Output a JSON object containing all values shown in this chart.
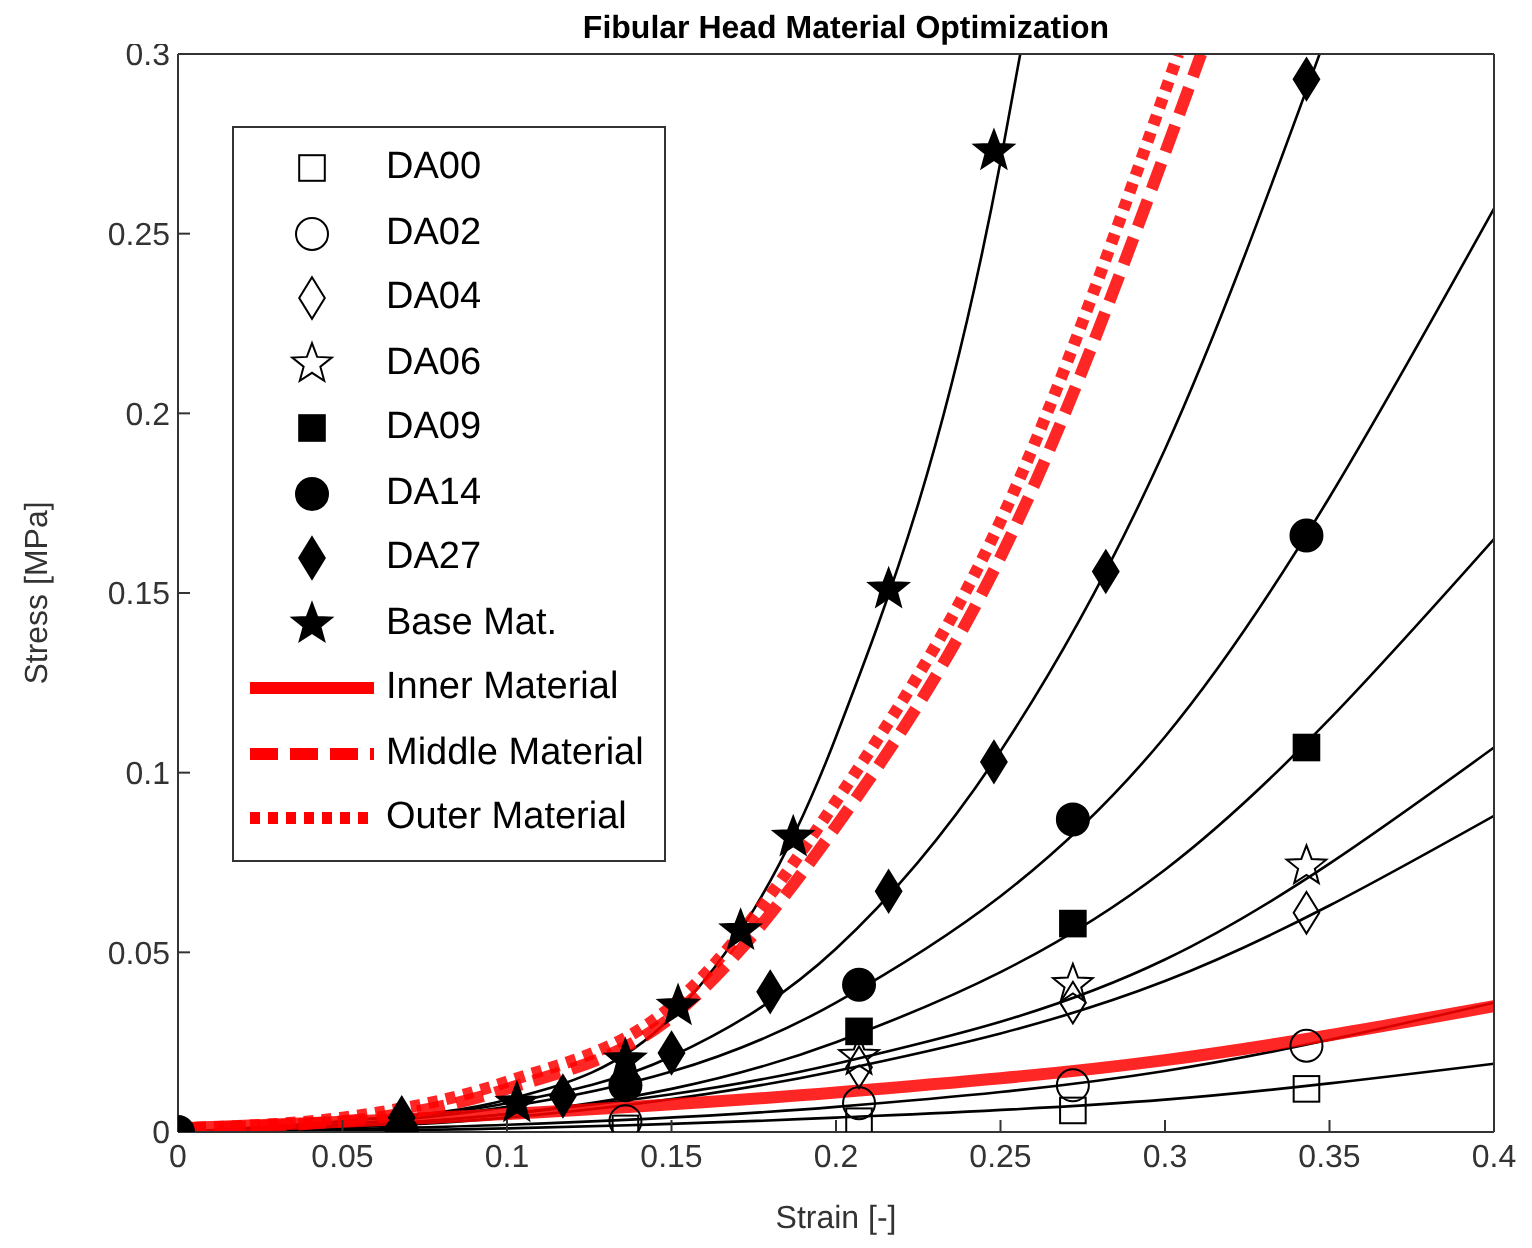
{
  "chart_data": {
    "type": "scatter",
    "title": "Fibular Head Material Optimization",
    "xlabel": "Strain [-]",
    "ylabel": "Stress [MPa]",
    "xlim": [
      0,
      0.4
    ],
    "ylim": [
      0,
      0.3
    ],
    "xticks": [
      0,
      0.05,
      0.1,
      0.15,
      0.2,
      0.25,
      0.3,
      0.35,
      0.4
    ],
    "yticks": [
      0,
      0.05,
      0.1,
      0.15,
      0.2,
      0.25,
      0.3
    ],
    "legend": "top left",
    "series": [
      {
        "type": "line",
        "color": "#000000",
        "line_style": "solid",
        "marker": "none",
        "x": [
          0,
          0.1,
          0.2,
          0.3,
          0.4
        ],
        "values": [
          0,
          0.001,
          0.004,
          0.009,
          0.019
        ]
      },
      {
        "type": "line",
        "color": "#000000",
        "line_style": "solid",
        "marker": "none",
        "x": [
          0,
          0.1,
          0.2,
          0.3,
          0.4
        ],
        "values": [
          0,
          0.002,
          0.007,
          0.017,
          0.036
        ]
      },
      {
        "type": "line",
        "color": "#000000",
        "line_style": "solid",
        "marker": "none",
        "x": [
          0,
          0.1,
          0.2,
          0.3,
          0.4
        ],
        "values": [
          0,
          0.004,
          0.017,
          0.042,
          0.088
        ]
      },
      {
        "type": "line",
        "color": "#000000",
        "line_style": "solid",
        "marker": "none",
        "x": [
          0,
          0.1,
          0.2,
          0.3,
          0.4
        ],
        "values": [
          0,
          0.005,
          0.019,
          0.048,
          0.107
        ]
      },
      {
        "type": "line",
        "color": "#000000",
        "line_style": "solid",
        "marker": "none",
        "x": [
          0,
          0.1,
          0.2,
          0.3,
          0.4
        ],
        "values": [
          0,
          0.005,
          0.025,
          0.073,
          0.165
        ]
      },
      {
        "type": "line",
        "color": "#000000",
        "line_style": "solid",
        "marker": "none",
        "x": [
          0,
          0.1,
          0.2,
          0.3,
          0.4
        ],
        "values": [
          0,
          0.007,
          0.036,
          0.11,
          0.257
        ]
      },
      {
        "type": "line",
        "color": "#000000",
        "line_style": "solid",
        "marker": "none",
        "x": [
          0,
          0.05,
          0.1,
          0.15,
          0.2,
          0.25,
          0.3,
          0.347
        ],
        "values": [
          0,
          0.003,
          0.008,
          0.021,
          0.051,
          0.106,
          0.19,
          0.3
        ]
      },
      {
        "type": "line",
        "color": "#000000",
        "line_style": "solid",
        "marker": "none",
        "x": [
          0,
          0.05,
          0.1,
          0.15,
          0.2,
          0.25,
          0.256
        ],
        "values": [
          0,
          0.003,
          0.009,
          0.032,
          0.11,
          0.27,
          0.3
        ]
      },
      {
        "name": "DA00",
        "type": "scatter",
        "color": "#000000",
        "marker": "square",
        "x": [
          0.136,
          0.207,
          0.272,
          0.343
        ],
        "values": [
          0.001,
          0.003,
          0.006,
          0.012
        ]
      },
      {
        "name": "DA02",
        "type": "scatter",
        "color": "#000000",
        "marker": "circle",
        "x": [
          0.136,
          0.207,
          0.272,
          0.343
        ],
        "values": [
          0.003,
          0.008,
          0.013,
          0.024
        ]
      },
      {
        "name": "DA04",
        "type": "scatter",
        "color": "#000000",
        "marker": "diamond",
        "x": [
          0.207,
          0.272,
          0.343
        ],
        "values": [
          0.018,
          0.036,
          0.061
        ]
      },
      {
        "name": "DA06",
        "type": "scatter",
        "color": "#000000",
        "marker": "star",
        "x": [
          0.207,
          0.272,
          0.343
        ],
        "values": [
          0.021,
          0.041,
          0.074
        ]
      },
      {
        "name": "DA09",
        "type": "scatter",
        "color": "#000000",
        "marker": "square",
        "x": [
          0.207,
          0.272,
          0.343
        ],
        "values": [
          0.028,
          0.058,
          0.107
        ]
      },
      {
        "name": "DA14",
        "type": "scatter",
        "color": "#000000",
        "marker": "circle",
        "x": [
          0,
          0.068,
          0.136,
          0.207,
          0.272,
          0.343
        ],
        "values": [
          0,
          0,
          0.013,
          0.041,
          0.087,
          0.166
        ]
      },
      {
        "name": "DA27",
        "type": "scatter",
        "color": "#000000",
        "marker": "diamond",
        "x": [
          0.068,
          0.117,
          0.15,
          0.18,
          0.216,
          0.248,
          0.282,
          0.343
        ],
        "values": [
          0.004,
          0.01,
          0.022,
          0.039,
          0.067,
          0.103,
          0.156,
          0.293
        ]
      },
      {
        "name": "Base Mat.",
        "type": "scatter",
        "color": "#000000",
        "marker": "star",
        "x": [
          0.103,
          0.136,
          0.152,
          0.171,
          0.187,
          0.216,
          0.248
        ],
        "values": [
          0.008,
          0.02,
          0.035,
          0.056,
          0.082,
          0.151,
          0.273
        ]
      },
      {
        "name": "Inner Material",
        "type": "line",
        "color": "#ff0000",
        "line_style": "solid",
        "marker": "none",
        "x": [
          0,
          0.1,
          0.2,
          0.3,
          0.4
        ],
        "values": [
          0.001,
          0.005,
          0.011,
          0.02,
          0.035
        ]
      },
      {
        "name": "Middle Material",
        "type": "line",
        "color": "#ff0000",
        "line_style": "dashed",
        "marker": "none",
        "x": [
          0,
          0.05,
          0.1,
          0.15,
          0.2,
          0.25,
          0.311
        ],
        "values": [
          0.001,
          0.003,
          0.012,
          0.032,
          0.085,
          0.16,
          0.3
        ]
      },
      {
        "name": "Outer Material",
        "type": "line",
        "color": "#ff0000",
        "line_style": "dotted",
        "marker": "none",
        "x": [
          0,
          0.05,
          0.1,
          0.15,
          0.2,
          0.25,
          0.304
        ],
        "values": [
          0.001,
          0.004,
          0.014,
          0.035,
          0.092,
          0.17,
          0.3
        ]
      }
    ]
  }
}
